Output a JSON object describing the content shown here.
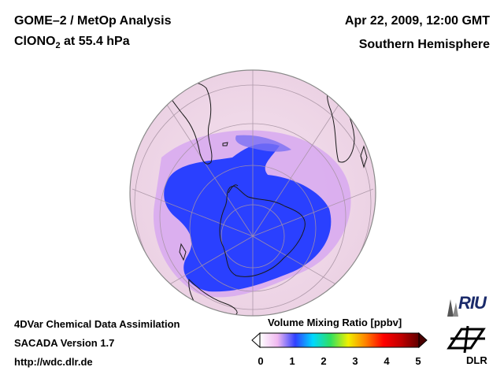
{
  "header": {
    "title_line1": "GOME–2 / MetOp Analysis",
    "species_prefix": "ClONO",
    "species_subscript": "2",
    "species_suffix": " at 55.4 hPa",
    "datetime": "Apr 22, 2009, 12:00 GMT",
    "region": "Southern Hemisphere"
  },
  "footer": {
    "line1": "4DVar Chemical Data Assimilation",
    "line2": "SACADA Version 1.7",
    "line3": "http://wdc.dlr.de"
  },
  "colorbar": {
    "title": "Volume Mixing Ratio [ppbv]",
    "ticks": [
      "0",
      "1",
      "2",
      "3",
      "4",
      "5"
    ],
    "min": 0,
    "max": 5,
    "stops": [
      "#ffffff",
      "#f0b8f0",
      "#3040ff",
      "#00d8ff",
      "#30e060",
      "#f0f000",
      "#ff8000",
      "#ff0000",
      "#c00000",
      "#600000"
    ]
  },
  "logos": {
    "riu": "RIU",
    "dlr": "DLR"
  },
  "map": {
    "projection": "orthographic, south pole centered",
    "background_color": "#f3dcec",
    "low_color": "#2a40ff"
  }
}
